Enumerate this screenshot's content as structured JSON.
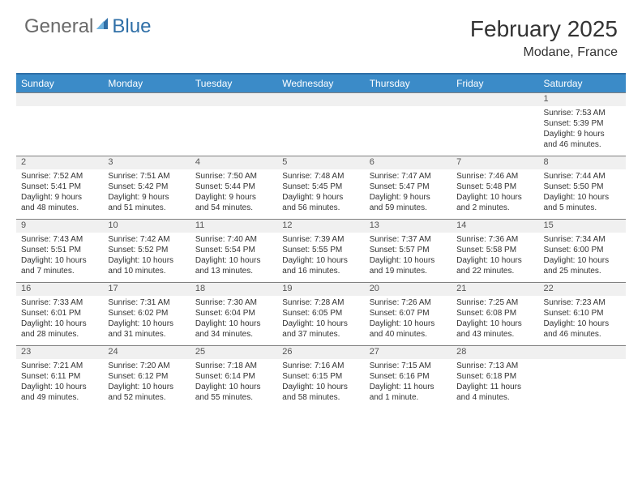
{
  "brand": {
    "part1": "General",
    "part2": "Blue"
  },
  "title": "February 2025",
  "location": "Modane, France",
  "colors": {
    "header_bg": "#3b8bc8",
    "header_border": "#2f6fa7",
    "daynum_bg": "#f0f0f0",
    "row_border": "#808080",
    "text": "#333333",
    "logo_gray": "#6a6a6a",
    "logo_blue": "#2f6fa7"
  },
  "weekdays": [
    "Sunday",
    "Monday",
    "Tuesday",
    "Wednesday",
    "Thursday",
    "Friday",
    "Saturday"
  ],
  "weeks": [
    [
      null,
      null,
      null,
      null,
      null,
      null,
      {
        "n": "1",
        "sr": "Sunrise: 7:53 AM",
        "ss": "Sunset: 5:39 PM",
        "d1": "Daylight: 9 hours",
        "d2": "and 46 minutes."
      }
    ],
    [
      {
        "n": "2",
        "sr": "Sunrise: 7:52 AM",
        "ss": "Sunset: 5:41 PM",
        "d1": "Daylight: 9 hours",
        "d2": "and 48 minutes."
      },
      {
        "n": "3",
        "sr": "Sunrise: 7:51 AM",
        "ss": "Sunset: 5:42 PM",
        "d1": "Daylight: 9 hours",
        "d2": "and 51 minutes."
      },
      {
        "n": "4",
        "sr": "Sunrise: 7:50 AM",
        "ss": "Sunset: 5:44 PM",
        "d1": "Daylight: 9 hours",
        "d2": "and 54 minutes."
      },
      {
        "n": "5",
        "sr": "Sunrise: 7:48 AM",
        "ss": "Sunset: 5:45 PM",
        "d1": "Daylight: 9 hours",
        "d2": "and 56 minutes."
      },
      {
        "n": "6",
        "sr": "Sunrise: 7:47 AM",
        "ss": "Sunset: 5:47 PM",
        "d1": "Daylight: 9 hours",
        "d2": "and 59 minutes."
      },
      {
        "n": "7",
        "sr": "Sunrise: 7:46 AM",
        "ss": "Sunset: 5:48 PM",
        "d1": "Daylight: 10 hours",
        "d2": "and 2 minutes."
      },
      {
        "n": "8",
        "sr": "Sunrise: 7:44 AM",
        "ss": "Sunset: 5:50 PM",
        "d1": "Daylight: 10 hours",
        "d2": "and 5 minutes."
      }
    ],
    [
      {
        "n": "9",
        "sr": "Sunrise: 7:43 AM",
        "ss": "Sunset: 5:51 PM",
        "d1": "Daylight: 10 hours",
        "d2": "and 7 minutes."
      },
      {
        "n": "10",
        "sr": "Sunrise: 7:42 AM",
        "ss": "Sunset: 5:52 PM",
        "d1": "Daylight: 10 hours",
        "d2": "and 10 minutes."
      },
      {
        "n": "11",
        "sr": "Sunrise: 7:40 AM",
        "ss": "Sunset: 5:54 PM",
        "d1": "Daylight: 10 hours",
        "d2": "and 13 minutes."
      },
      {
        "n": "12",
        "sr": "Sunrise: 7:39 AM",
        "ss": "Sunset: 5:55 PM",
        "d1": "Daylight: 10 hours",
        "d2": "and 16 minutes."
      },
      {
        "n": "13",
        "sr": "Sunrise: 7:37 AM",
        "ss": "Sunset: 5:57 PM",
        "d1": "Daylight: 10 hours",
        "d2": "and 19 minutes."
      },
      {
        "n": "14",
        "sr": "Sunrise: 7:36 AM",
        "ss": "Sunset: 5:58 PM",
        "d1": "Daylight: 10 hours",
        "d2": "and 22 minutes."
      },
      {
        "n": "15",
        "sr": "Sunrise: 7:34 AM",
        "ss": "Sunset: 6:00 PM",
        "d1": "Daylight: 10 hours",
        "d2": "and 25 minutes."
      }
    ],
    [
      {
        "n": "16",
        "sr": "Sunrise: 7:33 AM",
        "ss": "Sunset: 6:01 PM",
        "d1": "Daylight: 10 hours",
        "d2": "and 28 minutes."
      },
      {
        "n": "17",
        "sr": "Sunrise: 7:31 AM",
        "ss": "Sunset: 6:02 PM",
        "d1": "Daylight: 10 hours",
        "d2": "and 31 minutes."
      },
      {
        "n": "18",
        "sr": "Sunrise: 7:30 AM",
        "ss": "Sunset: 6:04 PM",
        "d1": "Daylight: 10 hours",
        "d2": "and 34 minutes."
      },
      {
        "n": "19",
        "sr": "Sunrise: 7:28 AM",
        "ss": "Sunset: 6:05 PM",
        "d1": "Daylight: 10 hours",
        "d2": "and 37 minutes."
      },
      {
        "n": "20",
        "sr": "Sunrise: 7:26 AM",
        "ss": "Sunset: 6:07 PM",
        "d1": "Daylight: 10 hours",
        "d2": "and 40 minutes."
      },
      {
        "n": "21",
        "sr": "Sunrise: 7:25 AM",
        "ss": "Sunset: 6:08 PM",
        "d1": "Daylight: 10 hours",
        "d2": "and 43 minutes."
      },
      {
        "n": "22",
        "sr": "Sunrise: 7:23 AM",
        "ss": "Sunset: 6:10 PM",
        "d1": "Daylight: 10 hours",
        "d2": "and 46 minutes."
      }
    ],
    [
      {
        "n": "23",
        "sr": "Sunrise: 7:21 AM",
        "ss": "Sunset: 6:11 PM",
        "d1": "Daylight: 10 hours",
        "d2": "and 49 minutes."
      },
      {
        "n": "24",
        "sr": "Sunrise: 7:20 AM",
        "ss": "Sunset: 6:12 PM",
        "d1": "Daylight: 10 hours",
        "d2": "and 52 minutes."
      },
      {
        "n": "25",
        "sr": "Sunrise: 7:18 AM",
        "ss": "Sunset: 6:14 PM",
        "d1": "Daylight: 10 hours",
        "d2": "and 55 minutes."
      },
      {
        "n": "26",
        "sr": "Sunrise: 7:16 AM",
        "ss": "Sunset: 6:15 PM",
        "d1": "Daylight: 10 hours",
        "d2": "and 58 minutes."
      },
      {
        "n": "27",
        "sr": "Sunrise: 7:15 AM",
        "ss": "Sunset: 6:16 PM",
        "d1": "Daylight: 11 hours",
        "d2": "and 1 minute."
      },
      {
        "n": "28",
        "sr": "Sunrise: 7:13 AM",
        "ss": "Sunset: 6:18 PM",
        "d1": "Daylight: 11 hours",
        "d2": "and 4 minutes."
      },
      null
    ]
  ]
}
